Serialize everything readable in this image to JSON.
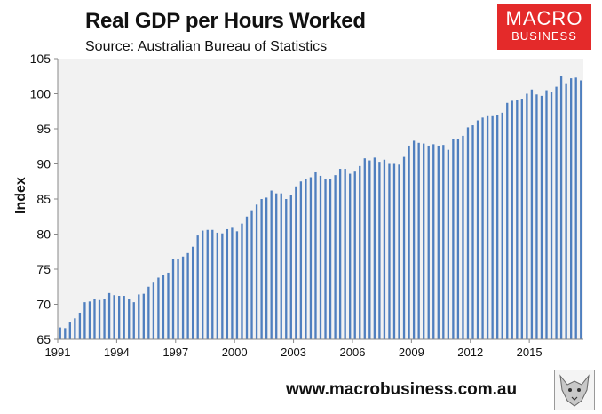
{
  "header": {
    "title": "Real GDP per Hours Worked",
    "subtitle": "Source: Australian Bureau of Statistics"
  },
  "logo": {
    "line1": "MACRO",
    "line2": "BUSINESS"
  },
  "footer": {
    "url": "www.macrobusiness.com.au"
  },
  "colors": {
    "bar": "#4f7fbf",
    "plot_bg": "#f2f2f2",
    "logo_bg": "#e42a2a"
  },
  "chart_data": {
    "type": "bar",
    "title": "Real GDP per Hours Worked",
    "subtitle": "Source: Australian Bureau of Statistics",
    "xlabel": "",
    "ylabel": "Index",
    "ylim": [
      65,
      105
    ],
    "yticks": [
      65,
      70,
      75,
      80,
      85,
      90,
      95,
      100,
      105
    ],
    "xticks": [
      "1991",
      "1994",
      "1997",
      "2000",
      "2003",
      "2006",
      "2009",
      "2012",
      "2015"
    ],
    "grid": false,
    "legend": "none",
    "frequency": "quarterly",
    "start": "1991 Q1",
    "values": [
      66.7,
      66.6,
      67.4,
      68.0,
      68.8,
      70.3,
      70.4,
      70.8,
      70.6,
      70.7,
      71.6,
      71.3,
      71.2,
      71.2,
      70.7,
      70.3,
      71.4,
      71.5,
      72.5,
      73.2,
      73.8,
      74.2,
      74.5,
      76.5,
      76.5,
      76.8,
      77.3,
      78.2,
      79.8,
      80.5,
      80.6,
      80.6,
      80.2,
      80.1,
      80.7,
      80.9,
      80.4,
      81.5,
      82.5,
      83.4,
      84.2,
      85.0,
      85.2,
      86.2,
      85.8,
      85.8,
      85.0,
      85.6,
      86.8,
      87.5,
      87.8,
      88.1,
      88.8,
      88.3,
      87.9,
      87.9,
      88.4,
      89.3,
      89.3,
      88.6,
      88.9,
      89.7,
      90.8,
      90.5,
      90.9,
      90.3,
      90.6,
      90.0,
      90.0,
      89.9,
      91.0,
      92.6,
      93.3,
      93.0,
      92.9,
      92.6,
      92.8,
      92.6,
      92.7,
      92.0,
      93.5,
      93.6,
      94.0,
      95.2,
      95.5,
      96.2,
      96.6,
      96.8,
      96.8,
      97.0,
      97.3,
      98.7,
      99.0,
      99.1,
      99.3,
      100.0,
      100.6,
      99.9,
      99.7,
      100.5,
      100.3,
      101.0,
      102.5,
      101.5,
      102.2,
      102.3,
      101.9
    ]
  }
}
